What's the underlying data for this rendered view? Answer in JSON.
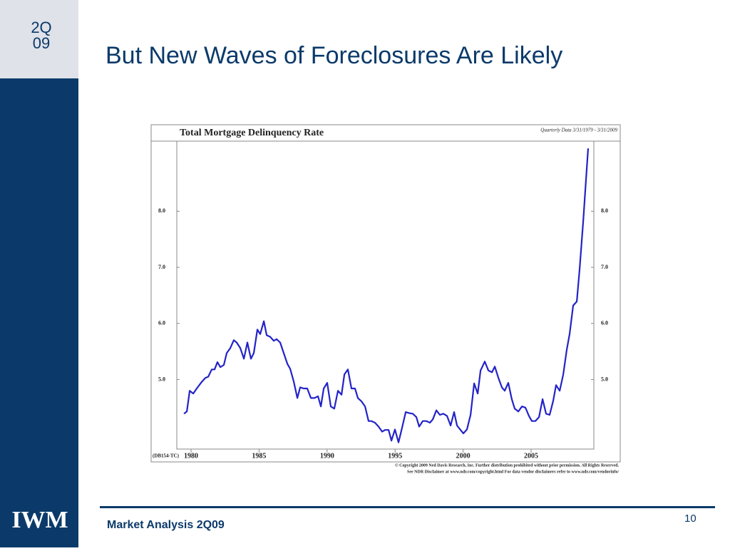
{
  "slide": {
    "tag_top": "2Q",
    "tag_bottom": "09",
    "title": "But New Waves of Foreclosures Are Likely",
    "logo": "IWM",
    "footer": "Market Analysis 2Q09",
    "page_number": "10"
  },
  "chart_data": {
    "type": "line",
    "title": "Total Mortgage Delinquency Rate",
    "subtitle": "Quarterly Data 3/31/1979 - 3/31/2009",
    "code": "(DB154-TC)",
    "notes": [
      "© Copyright 2009 Ned Davis Research, Inc.  Further distribution prohibited without prior permission.  All Rights Reserved.",
      "See NDR Disclaimer at www.ndr.com/copyright.html For data vendor disclaimers refer to www.ndr.com/vendorinfo/"
    ],
    "color": "#2323c8",
    "x": [
      1979.48,
      1979.69,
      1979.9,
      1980.16,
      1980.42,
      1980.79,
      1981.05,
      1981.26,
      1981.52,
      1981.73,
      1981.94,
      1982.15,
      1982.41,
      1982.62,
      1982.88,
      1983.14,
      1983.35,
      1983.62,
      1983.88,
      1984.14,
      1984.4,
      1984.61,
      1984.87,
      1985.08,
      1985.35,
      1985.56,
      1985.82,
      1986.08,
      1986.29,
      1986.55,
      1986.81,
      1987.08,
      1987.29,
      1987.55,
      1987.81,
      1988.02,
      1988.28,
      1988.54,
      1988.81,
      1989.07,
      1989.33,
      1989.54,
      1989.75,
      1990.01,
      1990.27,
      1990.53,
      1990.8,
      1991.06,
      1991.27,
      1991.53,
      1991.79,
      1992.05,
      1992.26,
      1992.53,
      1992.79,
      1993.05,
      1993.26,
      1993.52,
      1993.78,
      1994.05,
      1994.26,
      1994.52,
      1994.73,
      1994.99,
      1995.25,
      1995.51,
      1995.78,
      1996.04,
      1996.3,
      1996.56,
      1996.77,
      1997.03,
      1997.3,
      1997.56,
      1997.77,
      1998.03,
      1998.29,
      1998.55,
      1998.82,
      1999.08,
      1999.34,
      1999.55,
      1999.81,
      2000.02,
      2000.28,
      2000.55,
      2000.81,
      2001.07,
      2001.28,
      2001.59,
      2001.86,
      2002.12,
      2002.33,
      2002.59,
      2002.85,
      2003.06,
      2003.32,
      2003.58,
      2003.79,
      2004.06,
      2004.32,
      2004.58,
      2004.84,
      2005.05,
      2005.31,
      2005.58,
      2005.84,
      2006.1,
      2006.36,
      2006.62,
      2006.83,
      2007.1,
      2007.36,
      2007.62,
      2007.83,
      2008.09,
      2008.36,
      2008.56,
      2008.83,
      2009.04,
      2009.19
    ],
    "values": [
      4.39,
      4.43,
      4.8,
      4.75,
      4.84,
      4.96,
      5.03,
      5.05,
      5.18,
      5.18,
      5.31,
      5.22,
      5.26,
      5.47,
      5.56,
      5.7,
      5.66,
      5.56,
      5.37,
      5.66,
      5.37,
      5.47,
      5.89,
      5.81,
      6.04,
      5.79,
      5.76,
      5.69,
      5.72,
      5.66,
      5.47,
      5.28,
      5.19,
      4.96,
      4.67,
      4.86,
      4.84,
      4.84,
      4.67,
      4.67,
      4.7,
      4.52,
      4.84,
      4.94,
      4.52,
      4.48,
      4.8,
      4.73,
      5.09,
      5.18,
      4.84,
      4.84,
      4.67,
      4.61,
      4.52,
      4.26,
      4.26,
      4.23,
      4.16,
      4.07,
      4.1,
      4.1,
      3.91,
      4.11,
      3.88,
      4.14,
      4.42,
      4.4,
      4.39,
      4.33,
      4.16,
      4.26,
      4.26,
      4.23,
      4.29,
      4.45,
      4.37,
      4.39,
      4.35,
      4.18,
      4.42,
      4.18,
      4.1,
      4.04,
      4.11,
      4.37,
      4.93,
      4.75,
      5.16,
      5.32,
      5.16,
      5.13,
      5.23,
      5.03,
      4.86,
      4.8,
      4.94,
      4.65,
      4.48,
      4.43,
      4.52,
      4.5,
      4.35,
      4.26,
      4.26,
      4.33,
      4.65,
      4.39,
      4.37,
      4.62,
      4.9,
      4.8,
      5.09,
      5.53,
      5.81,
      6.32,
      6.39,
      6.96,
      7.82,
      8.58,
      9.12
    ],
    "xlim": [
      1978.95,
      2009.61
    ],
    "xticks": [
      1980,
      1985,
      1990,
      1995,
      2000,
      2005
    ],
    "ylim": [
      3.76,
      9.25
    ],
    "yticks": [
      {
        "value": 5,
        "label": "5.0"
      },
      {
        "value": 6,
        "label": "6.0"
      },
      {
        "value": 7,
        "label": "7.0"
      },
      {
        "value": 8,
        "label": "8.0"
      }
    ]
  }
}
